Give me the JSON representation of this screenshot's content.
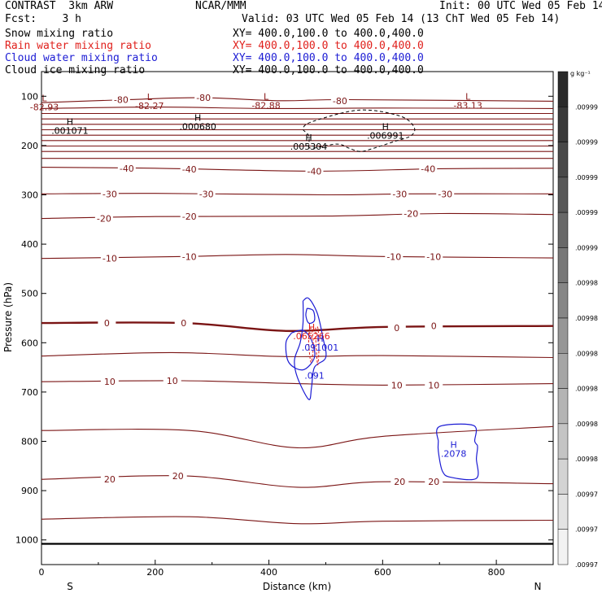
{
  "header": {
    "model": "CONTRAST  3km ARW",
    "org": "NCAR/MMM",
    "init": "Init: 00 UTC Wed 05 Feb 14",
    "fcst": "Fcst:    3 h",
    "valid": "Valid: 03 UTC Wed 05 Feb 14 (13 ChT Wed 05 Feb 14)"
  },
  "fields": [
    {
      "name": "Snow mixing ratio",
      "xy": "XY= 400.0,100.0 to 400.0,400.0",
      "color": "#000000"
    },
    {
      "name": "Rain water mixing ratio",
      "xy": "XY= 400.0,100.0 to 400.0,400.0",
      "color": "#e0201c"
    },
    {
      "name": "Cloud water mixing ratio",
      "xy": "XY= 400.0,100.0 to 400.0,400.0",
      "color": "#1c1cd4"
    },
    {
      "name": "Cloud ice mixing ratio",
      "xy": "XY= 400.0,100.0 to 400.0,400.0",
      "color": "#000000"
    }
  ],
  "chart_data": {
    "type": "contour",
    "xlabel": "Distance (km)",
    "ylabel": "Pressure (hPa)",
    "xlim": [
      0,
      900
    ],
    "ylim": [
      1050,
      50
    ],
    "x_ticks": [
      0,
      200,
      400,
      600,
      800
    ],
    "y_ticks": [
      100,
      200,
      300,
      400,
      500,
      600,
      700,
      800,
      900,
      1000
    ],
    "direction_labels": {
      "left": "S",
      "right": "N"
    },
    "temperature_contours": [
      {
        "label": "-80",
        "p": [
          [
            0,
            113
          ],
          [
            150,
            107
          ],
          [
            280,
            103
          ],
          [
            420,
            109
          ],
          [
            540,
            107
          ],
          [
            900,
            110
          ]
        ],
        "labels_at": [
          [
            140,
            107
          ],
          [
            285,
            103
          ],
          [
            525,
            109
          ]
        ]
      },
      {
        "label": "",
        "p": [
          [
            0,
            125
          ],
          [
            200,
            122
          ],
          [
            400,
            125
          ],
          [
            600,
            124
          ],
          [
            900,
            125
          ]
        ],
        "labels_at": []
      },
      {
        "label": "",
        "p": [
          [
            0,
            135
          ],
          [
            900,
            135
          ]
        ],
        "labels_at": []
      },
      {
        "label": "",
        "p": [
          [
            0,
            146
          ],
          [
            900,
            146
          ]
        ],
        "labels_at": []
      },
      {
        "label": "",
        "p": [
          [
            0,
            157
          ],
          [
            900,
            157
          ]
        ],
        "labels_at": []
      },
      {
        "label": "",
        "p": [
          [
            0,
            168
          ],
          [
            900,
            168
          ]
        ],
        "labels_at": []
      },
      {
        "label": "",
        "p": [
          [
            0,
            179
          ],
          [
            900,
            179
          ]
        ],
        "labels_at": []
      },
      {
        "label": "",
        "p": [
          [
            0,
            190
          ],
          [
            900,
            190
          ]
        ],
        "labels_at": []
      },
      {
        "label": "",
        "p": [
          [
            0,
            201
          ],
          [
            900,
            201
          ]
        ],
        "labels_at": []
      },
      {
        "label": "",
        "p": [
          [
            0,
            212
          ],
          [
            900,
            212
          ]
        ],
        "labels_at": []
      },
      {
        "label": "",
        "p": [
          [
            0,
            226
          ],
          [
            900,
            226
          ]
        ],
        "labels_at": []
      },
      {
        "label": "-40",
        "p": [
          [
            0,
            244
          ],
          [
            200,
            246
          ],
          [
            480,
            252
          ],
          [
            700,
            247
          ],
          [
            900,
            246
          ]
        ],
        "labels_at": [
          [
            150,
            246
          ],
          [
            260,
            248
          ],
          [
            480,
            252
          ],
          [
            680,
            247
          ]
        ]
      },
      {
        "label": "-30",
        "p": [
          [
            0,
            298
          ],
          [
            200,
            297
          ],
          [
            500,
            300
          ],
          [
            650,
            298
          ],
          [
            900,
            298
          ]
        ],
        "labels_at": [
          [
            120,
            298
          ],
          [
            290,
            298
          ],
          [
            630,
            298
          ],
          [
            710,
            298
          ]
        ]
      },
      {
        "label": "-20",
        "p": [
          [
            0,
            348
          ],
          [
            200,
            344
          ],
          [
            500,
            343
          ],
          [
            700,
            338
          ],
          [
            900,
            340
          ]
        ],
        "labels_at": [
          [
            110,
            348
          ],
          [
            260,
            344
          ],
          [
            650,
            338
          ]
        ]
      },
      {
        "label": "-10",
        "p": [
          [
            0,
            429
          ],
          [
            250,
            425
          ],
          [
            430,
            421
          ],
          [
            600,
            425
          ],
          [
            900,
            428
          ]
        ],
        "labels_at": [
          [
            120,
            429
          ],
          [
            260,
            425
          ],
          [
            620,
            425
          ],
          [
            690,
            425
          ]
        ]
      },
      {
        "label": "0",
        "p": [
          [
            0,
            560
          ],
          [
            250,
            560
          ],
          [
            430,
            576
          ],
          [
            600,
            568
          ],
          [
            900,
            566
          ]
        ],
        "labels_at": [
          [
            115,
            560
          ],
          [
            250,
            560
          ],
          [
            625,
            570
          ],
          [
            690,
            566
          ]
        ],
        "bold": true
      },
      {
        "label": "",
        "p": [
          [
            0,
            627
          ],
          [
            230,
            620
          ],
          [
            430,
            628
          ],
          [
            600,
            626
          ],
          [
            900,
            630
          ]
        ],
        "labels_at": []
      },
      {
        "label": "10",
        "p": [
          [
            0,
            679
          ],
          [
            250,
            677
          ],
          [
            450,
            683
          ],
          [
            600,
            686
          ],
          [
            900,
            683
          ]
        ],
        "labels_at": [
          [
            120,
            679
          ],
          [
            230,
            677
          ],
          [
            625,
            686
          ],
          [
            690,
            686
          ]
        ]
      },
      {
        "label": "",
        "p": [
          [
            0,
            778
          ],
          [
            260,
            778
          ],
          [
            450,
            813
          ],
          [
            600,
            790
          ],
          [
            900,
            770
          ]
        ],
        "labels_at": []
      },
      {
        "label": "20",
        "p": [
          [
            0,
            877
          ],
          [
            250,
            870
          ],
          [
            450,
            893
          ],
          [
            600,
            882
          ],
          [
            900,
            886
          ]
        ],
        "labels_at": [
          [
            120,
            877
          ],
          [
            240,
            870
          ],
          [
            630,
            882
          ],
          [
            690,
            882
          ]
        ]
      },
      {
        "label": "",
        "p": [
          [
            0,
            958
          ],
          [
            260,
            953
          ],
          [
            450,
            967
          ],
          [
            600,
            962
          ],
          [
            900,
            960
          ]
        ],
        "labels_at": []
      }
    ],
    "surface_line": {
      "p": [
        [
          0,
          1008
        ],
        [
          900,
          1008
        ]
      ]
    },
    "extrema": [
      {
        "kind": "L",
        "value": "-82.93",
        "x": 5,
        "p": 110,
        "color": "#8b1a1a"
      },
      {
        "kind": "L",
        "value": "-82.27",
        "x": 190,
        "p": 108,
        "color": "#8b1a1a"
      },
      {
        "kind": "L",
        "value": "-82.88",
        "x": 395,
        "p": 107,
        "color": "#8b1a1a"
      },
      {
        "kind": "L",
        "value": "-83.13",
        "x": 750,
        "p": 107,
        "color": "#8b1a1a"
      },
      {
        "kind": "H",
        "value": ".001071",
        "x": 50,
        "p": 158,
        "color": "#000000"
      },
      {
        "kind": "H",
        "value": ".000680",
        "x": 275,
        "p": 150,
        "color": "#000000"
      },
      {
        "kind": "H",
        "value": ".005304",
        "x": 470,
        "p": 190,
        "color": "#000000"
      },
      {
        "kind": "H",
        "value": ".006991",
        "x": 605,
        "p": 168,
        "color": "#000000"
      },
      {
        "kind": "H",
        "value": ".065266",
        "x": 475,
        "p": 575,
        "color": "#e0201c"
      },
      {
        "kind": "H",
        "value": ".091001",
        "x": 490,
        "p": 598,
        "color": "#1c1cd4"
      },
      {
        "kind": "",
        "value": ".091",
        "x": 480,
        "p": 655,
        "color": "#1c1cd4"
      },
      {
        "kind": "H",
        "value": ".2078",
        "x": 725,
        "p": 813,
        "color": "#1c1cd4"
      }
    ],
    "ice_contour": {
      "p": [
        [
          470,
          204
        ],
        [
          470,
          180
        ],
        [
          460,
          165
        ],
        [
          480,
          150
        ],
        [
          560,
          128
        ],
        [
          630,
          140
        ],
        [
          655,
          162
        ],
        [
          650,
          180
        ],
        [
          620,
          192
        ],
        [
          580,
          207
        ],
        [
          560,
          212
        ],
        [
          540,
          205
        ],
        [
          520,
          197
        ],
        [
          480,
          205
        ],
        [
          470,
          204
        ]
      ]
    },
    "cloud_water_contours": [
      {
        "p": [
          [
            460,
            515
          ],
          [
            460,
            560
          ],
          [
            455,
            600
          ],
          [
            445,
            635
          ],
          [
            450,
            670
          ],
          [
            470,
            715
          ],
          [
            475,
            690
          ],
          [
            480,
            650
          ],
          [
            500,
            630
          ],
          [
            495,
            590
          ],
          [
            485,
            540
          ],
          [
            470,
            510
          ],
          [
            460,
            515
          ]
        ]
      },
      {
        "p": [
          [
            440,
            580
          ],
          [
            430,
            600
          ],
          [
            435,
            640
          ],
          [
            460,
            655
          ],
          [
            480,
            630
          ],
          [
            475,
            595
          ],
          [
            460,
            575
          ],
          [
            440,
            580
          ]
        ]
      },
      {
        "p": [
          [
            467,
            530
          ],
          [
            465,
            545
          ],
          [
            470,
            560
          ],
          [
            480,
            555
          ],
          [
            478,
            535
          ],
          [
            467,
            530
          ]
        ]
      },
      {
        "p": [
          [
            698,
            800
          ],
          [
            700,
            770
          ],
          [
            760,
            768
          ],
          [
            762,
            800
          ],
          [
            767,
            810
          ],
          [
            765,
            835
          ],
          [
            765,
            875
          ],
          [
            720,
            873
          ],
          [
            705,
            860
          ],
          [
            698,
            820
          ],
          [
            698,
            800
          ]
        ]
      }
    ],
    "rain_contours": [
      {
        "p": [
          [
            472,
            570
          ],
          [
            470,
            600
          ],
          [
            474,
            640
          ],
          [
            478,
            610
          ],
          [
            476,
            575
          ],
          [
            472,
            570
          ]
        ],
        "dashed": true
      },
      {
        "p": [
          [
            482,
            570
          ],
          [
            483,
            610
          ],
          [
            486,
            645
          ],
          [
            488,
            605
          ],
          [
            486,
            570
          ],
          [
            482,
            570
          ]
        ],
        "dashed": true
      }
    ],
    "colorbar": {
      "unit": "g kg⁻¹",
      "labels": [
        ".00999",
        ".00999",
        ".00999",
        ".00999",
        ".00999",
        ".00998",
        ".00998",
        ".00998",
        ".00998",
        ".00998",
        ".00998",
        ".00997",
        ".00997",
        ".00997"
      ],
      "shade_from": "#2a2a2a",
      "shade_to": "#f2f2f2"
    }
  }
}
